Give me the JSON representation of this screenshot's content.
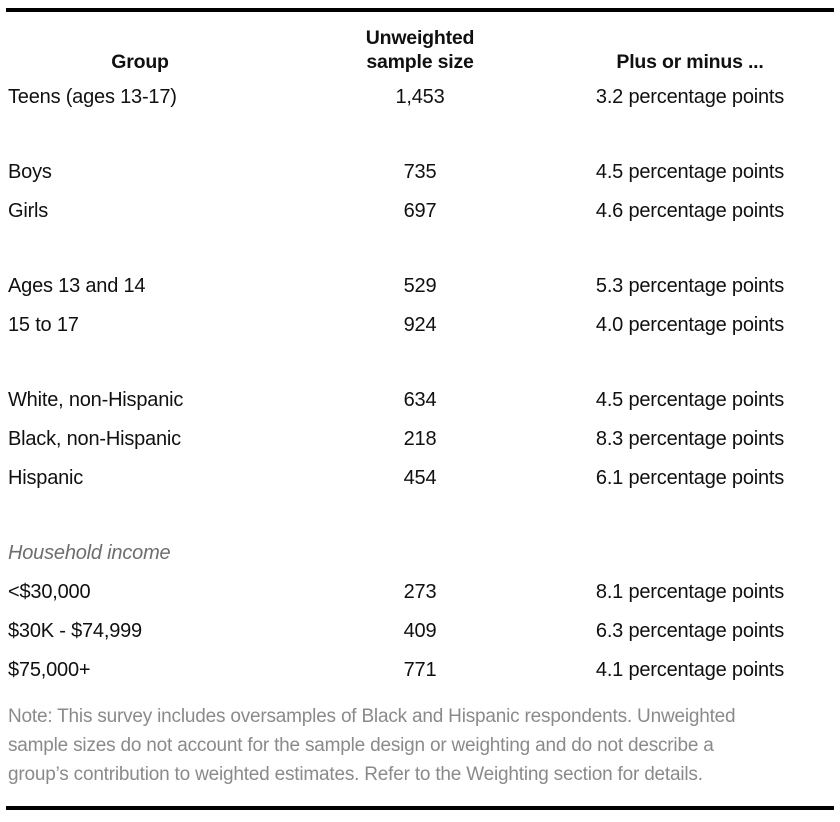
{
  "table": {
    "headers": {
      "group": "Group",
      "sample": "Unweighted\nsample size",
      "moe": "Plus or minus ..."
    },
    "sections": [
      {
        "label": "",
        "rows": [
          {
            "group": "Teens (ages 13-17)",
            "n": "1,453",
            "moe": "3.2 percentage points"
          }
        ]
      },
      {
        "label": "",
        "rows": [
          {
            "group": "Boys",
            "n": "735",
            "moe": "4.5 percentage points"
          },
          {
            "group": "Girls",
            "n": "697",
            "moe": "4.6 percentage points"
          }
        ]
      },
      {
        "label": "",
        "rows": [
          {
            "group": "Ages 13 and 14",
            "n": "529",
            "moe": "5.3 percentage points"
          },
          {
            "group": "15 to 17",
            "n": "924",
            "moe": "4.0 percentage points"
          }
        ]
      },
      {
        "label": "",
        "rows": [
          {
            "group": "White, non-Hispanic",
            "n": "634",
            "moe": "4.5 percentage points"
          },
          {
            "group": "Black, non-Hispanic",
            "n": "218",
            "moe": "8.3 percentage points"
          },
          {
            "group": "Hispanic",
            "n": "454",
            "moe": "6.1 percentage points"
          }
        ]
      },
      {
        "label": "Household income",
        "rows": [
          {
            "group": "<$30,000",
            "n": "273",
            "moe": "8.1 percentage points"
          },
          {
            "group": "$30K - $74,999",
            "n": "409",
            "moe": "6.3 percentage points"
          },
          {
            "group": "$75,000+",
            "n": "771",
            "moe": "4.1 percentage points"
          }
        ]
      }
    ]
  },
  "note": {
    "lines": [
      "Note: This survey includes oversamples of Black and Hispanic respondents. Unweighted",
      "sample sizes do not account for the sample design or weighting and do not describe a",
      "group’s contribution to weighted estimates. Refer to the Weighting section for details."
    ]
  },
  "colors": {
    "text": "#101010",
    "rule": "#000000",
    "note_gray": "#8a8a8a",
    "section_label_gray": "#6e6e6e",
    "background": "#ffffff"
  }
}
